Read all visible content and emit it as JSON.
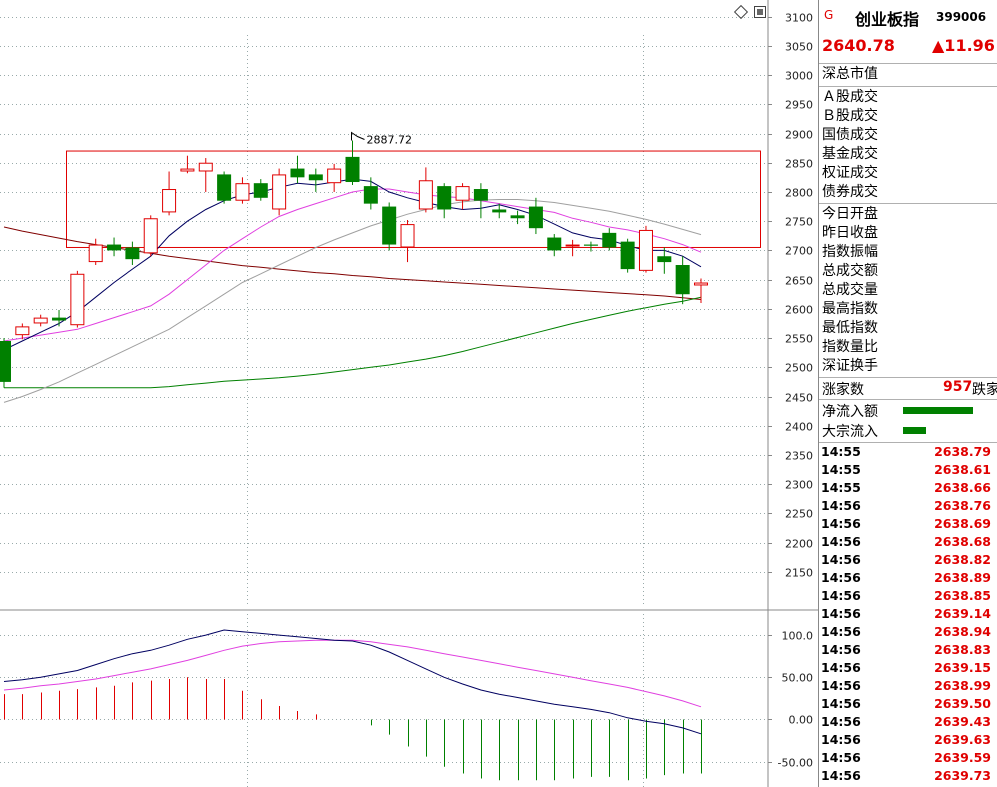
{
  "header": {
    "flag": "G",
    "index_name": "创业板指",
    "index_code": "399006",
    "price": "2640.78",
    "change": "▲11.96"
  },
  "fields": [
    "深总市值",
    "Ａ股成交",
    "Ｂ股成交",
    "国债成交",
    "基金成交",
    "权证成交",
    "债券成交",
    "今日开盘",
    "昨日收盘",
    "指数振幅",
    "总成交额",
    "总成交量",
    "最高指数",
    "最低指数",
    "指数量比",
    "深证换手"
  ],
  "breadth": {
    "up_label": "涨家数",
    "up_value": "957",
    "down_label": "跌家"
  },
  "flows": [
    {
      "label": "净流入额",
      "bar": 0.9
    },
    {
      "label": "大宗流入",
      "bar": 0.3
    }
  ],
  "ticks": [
    [
      "14:55",
      "2638.79"
    ],
    [
      "14:55",
      "2638.61"
    ],
    [
      "14:55",
      "2638.66"
    ],
    [
      "14:56",
      "2638.76"
    ],
    [
      "14:56",
      "2638.69"
    ],
    [
      "14:56",
      "2638.68"
    ],
    [
      "14:56",
      "2638.82"
    ],
    [
      "14:56",
      "2638.89"
    ],
    [
      "14:56",
      "2638.85"
    ],
    [
      "14:56",
      "2639.14"
    ],
    [
      "14:56",
      "2638.94"
    ],
    [
      "14:56",
      "2638.83"
    ],
    [
      "14:56",
      "2639.15"
    ],
    [
      "14:56",
      "2638.99"
    ],
    [
      "14:56",
      "2639.50"
    ],
    [
      "14:56",
      "2639.43"
    ],
    [
      "14:56",
      "2639.63"
    ],
    [
      "14:56",
      "2639.59"
    ],
    [
      "14:56",
      "2639.73"
    ]
  ],
  "colors": {
    "up": "#e00000",
    "down": "#008000",
    "ma5": "#000060",
    "ma10": "#e040e0",
    "ma20": "#a0a0a0",
    "ma60": "#008000",
    "ma120": "#800000"
  },
  "chart_data": [
    {
      "type": "candlestick",
      "y_ticks": [
        3100,
        3050,
        3000,
        2950,
        2900,
        2850,
        2800,
        2750,
        2700,
        2650,
        2600,
        2550,
        2500,
        2450,
        2400,
        2350,
        2300,
        2250,
        2200,
        2150
      ],
      "ylim": [
        2095,
        3125
      ],
      "high_label": "2887.72",
      "candles": [
        [
          2545,
          2475,
          2550,
          2465
        ],
        [
          2555,
          2570,
          2575,
          2548
        ],
        [
          2575,
          2585,
          2590,
          2570
        ],
        [
          2585,
          2580,
          2598,
          2570
        ],
        [
          2572,
          2660,
          2665,
          2568
        ],
        [
          2680,
          2710,
          2720,
          2675
        ],
        [
          2710,
          2700,
          2722,
          2690
        ],
        [
          2705,
          2685,
          2715,
          2675
        ],
        [
          2695,
          2755,
          2760,
          2690
        ],
        [
          2765,
          2805,
          2835,
          2760
        ],
        [
          2835,
          2840,
          2862,
          2832
        ],
        [
          2835,
          2850,
          2858,
          2800
        ],
        [
          2830,
          2785,
          2835,
          2780
        ],
        [
          2785,
          2815,
          2825,
          2780
        ],
        [
          2815,
          2790,
          2822,
          2785
        ],
        [
          2770,
          2830,
          2840,
          2760
        ],
        [
          2840,
          2825,
          2862,
          2815
        ],
        [
          2830,
          2820,
          2840,
          2800
        ],
        [
          2815,
          2840,
          2848,
          2800
        ],
        [
          2860,
          2817,
          2888,
          2812
        ],
        [
          2810,
          2780,
          2825,
          2770
        ],
        [
          2775,
          2710,
          2782,
          2700
        ],
        [
          2705,
          2745,
          2752,
          2680
        ],
        [
          2770,
          2820,
          2842,
          2765
        ],
        [
          2810,
          2770,
          2815,
          2755
        ],
        [
          2785,
          2810,
          2815,
          2770
        ],
        [
          2805,
          2785,
          2815,
          2755
        ],
        [
          2770,
          2765,
          2780,
          2755
        ],
        [
          2760,
          2755,
          2768,
          2745
        ],
        [
          2775,
          2738,
          2790,
          2728
        ],
        [
          2722,
          2700,
          2728,
          2690
        ],
        [
          2710,
          2710,
          2718,
          2690
        ],
        [
          2710,
          2708,
          2715,
          2698
        ],
        [
          2730,
          2705,
          2738,
          2700
        ],
        [
          2715,
          2668,
          2720,
          2662
        ],
        [
          2665,
          2735,
          2742,
          2662
        ],
        [
          2690,
          2680,
          2705,
          2660
        ],
        [
          2675,
          2625,
          2690,
          2608
        ],
        [
          2640,
          2645,
          2652,
          2610
        ]
      ],
      "ma5": [
        2530,
        2545,
        2560,
        2575,
        2595,
        2620,
        2645,
        2668,
        2690,
        2725,
        2750,
        2770,
        2785,
        2795,
        2800,
        2808,
        2815,
        2812,
        2817,
        2822,
        2818,
        2800,
        2790,
        2782,
        2775,
        2770,
        2772,
        2778,
        2770,
        2760,
        2745,
        2730,
        2722,
        2718,
        2708,
        2700,
        2700,
        2690,
        2672
      ],
      "ma10": [
        2545,
        2550,
        2555,
        2560,
        2565,
        2575,
        2585,
        2595,
        2605,
        2625,
        2650,
        2675,
        2700,
        2720,
        2740,
        2758,
        2770,
        2780,
        2790,
        2800,
        2805,
        2805,
        2800,
        2795,
        2792,
        2790,
        2785,
        2780,
        2775,
        2770,
        2765,
        2755,
        2748,
        2740,
        2735,
        2728,
        2720,
        2710,
        2697
      ],
      "ma20": [
        2440,
        2450,
        2462,
        2475,
        2490,
        2505,
        2520,
        2535,
        2550,
        2565,
        2585,
        2605,
        2625,
        2645,
        2660,
        2675,
        2690,
        2705,
        2718,
        2730,
        2742,
        2752,
        2762,
        2770,
        2778,
        2783,
        2786,
        2787,
        2787,
        2785,
        2782,
        2777,
        2772,
        2767,
        2760,
        2753,
        2745,
        2736,
        2727
      ],
      "ma60": [
        2465,
        2465,
        2465,
        2465,
        2465,
        2465,
        2465,
        2465,
        2465,
        2467,
        2470,
        2473,
        2476,
        2478,
        2480,
        2482,
        2485,
        2488,
        2492,
        2496,
        2500,
        2504,
        2509,
        2514,
        2520,
        2527,
        2535,
        2543,
        2551,
        2559,
        2567,
        2575,
        2582,
        2589,
        2596,
        2602,
        2608,
        2613,
        2620
      ],
      "ma120": [
        2740,
        2733,
        2727,
        2721,
        2715,
        2710,
        2705,
        2700,
        2695,
        2690,
        2686,
        2682,
        2678,
        2674,
        2671,
        2668,
        2665,
        2662,
        2660,
        2657,
        2655,
        2652,
        2650,
        2648,
        2646,
        2644,
        2642,
        2640,
        2638,
        2636,
        2634,
        2632,
        2630,
        2628,
        2626,
        2624,
        2622,
        2619,
        2616
      ],
      "box": {
        "top": 2870,
        "bottom": 2705
      }
    },
    {
      "type": "macd",
      "y_ticks": [
        100.0,
        50.0,
        0.0,
        -50.0
      ],
      "y_tick_labels": [
        "100.0",
        "50.00",
        "0.00",
        "-50.00"
      ],
      "ylim": [
        -80,
        125
      ],
      "dif": [
        45,
        47,
        50,
        54,
        58,
        65,
        72,
        78,
        82,
        88,
        95,
        100,
        106,
        104,
        102,
        100,
        98,
        96,
        94,
        93,
        88,
        80,
        70,
        60,
        50,
        42,
        35,
        30,
        26,
        22,
        18,
        15,
        12,
        8,
        2,
        -2,
        -5,
        -10,
        -17
      ],
      "dea": [
        35,
        37,
        40,
        42,
        45,
        48,
        52,
        56,
        60,
        65,
        70,
        76,
        82,
        87,
        90,
        92,
        93,
        94,
        94,
        94,
        92,
        89,
        86,
        82,
        78,
        74,
        70,
        66,
        62,
        58,
        54,
        50,
        46,
        42,
        38,
        33,
        28,
        22,
        15
      ],
      "macd": [
        30,
        30,
        32,
        34,
        36,
        38,
        40,
        44,
        46,
        48,
        50,
        48,
        48,
        34,
        24,
        16,
        10,
        6,
        0,
        0,
        -7,
        -18,
        -32,
        -44,
        -56,
        -64,
        -70,
        -72,
        -72,
        -72,
        -72,
        -70,
        -68,
        -68,
        -72,
        -70,
        -66,
        -64,
        -64
      ]
    }
  ]
}
